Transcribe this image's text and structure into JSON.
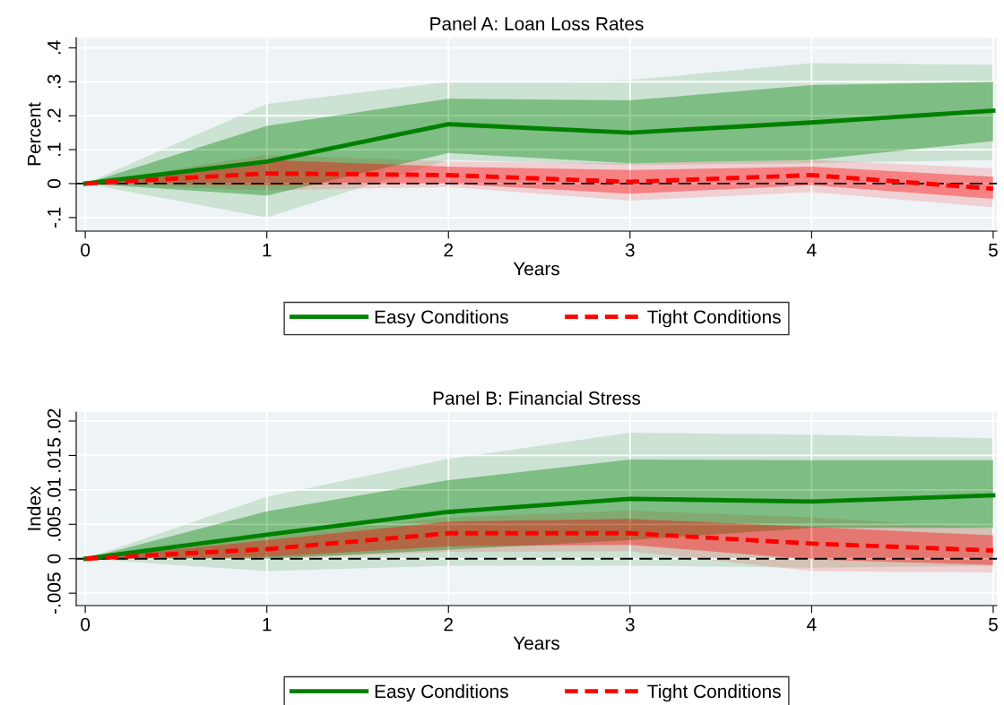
{
  "chart_data": [
    {
      "type": "line",
      "title": "Panel A: Loan Loss Rates",
      "xlabel": "Years",
      "ylabel": "Percent",
      "x": [
        0,
        1,
        2,
        3,
        4,
        5
      ],
      "xlim": [
        -0.05,
        5.02
      ],
      "xticks": [
        0,
        1,
        2,
        3,
        4,
        5
      ],
      "ylim": [
        -0.14,
        0.43
      ],
      "yticks": [
        {
          "value": -0.1,
          "label": "-.1"
        },
        0,
        {
          "value": 0.1,
          "label": ".1"
        },
        {
          "value": 0.2,
          "label": ".2"
        },
        {
          "value": 0.3,
          "label": ".3"
        },
        {
          "value": 0.4,
          "label": ".4"
        }
      ],
      "grid": true,
      "legend": "bottom",
      "ref_lines": [
        {
          "axis": "y",
          "value": 0,
          "color": "#000000",
          "line_style": "dashed"
        }
      ],
      "series": [
        {
          "name": "Easy Conditions",
          "color": "#008000",
          "line_style": "solid",
          "values": [
            0,
            0.065,
            0.175,
            0.15,
            0.18,
            0.215
          ],
          "lower": [
            0,
            -0.035,
            0.09,
            0.06,
            0.07,
            0.125
          ],
          "upper": [
            0,
            0.17,
            0.25,
            0.245,
            0.29,
            0.3
          ]
        },
        {
          "name": "Tight Conditions",
          "color": "#ff0000",
          "line_style": "dashed",
          "values": [
            0,
            0.03,
            0.025,
            0.005,
            0.025,
            -0.015
          ],
          "lower": [
            0,
            -0.005,
            0.0,
            -0.03,
            -0.005,
            -0.045
          ],
          "upper": [
            0,
            0.07,
            0.05,
            0.04,
            0.05,
            0.02
          ]
        },
        {
          "color": "#008000",
          "values": [
            null,
            null,
            null,
            null,
            null,
            null
          ],
          "lower": [
            0,
            -0.1,
            0.07,
            0.055,
            0.06,
            0.07
          ],
          "upper": [
            0,
            0.235,
            0.3,
            0.305,
            0.355,
            0.35
          ]
        },
        {
          "color": "#ff0000",
          "values": [
            null,
            null,
            null,
            null,
            null,
            null
          ],
          "lower": [
            0,
            -0.02,
            -0.01,
            -0.05,
            -0.025,
            -0.07
          ],
          "upper": [
            0,
            0.085,
            0.065,
            0.06,
            0.07,
            0.045
          ]
        }
      ]
    },
    {
      "type": "line",
      "title": "Panel B: Financial Stress",
      "xlabel": "Years",
      "ylabel": "Index",
      "x": [
        0,
        1,
        2,
        3,
        4,
        5
      ],
      "xlim": [
        -0.05,
        5.02
      ],
      "xticks": [
        0,
        1,
        2,
        3,
        4,
        5
      ],
      "ylim": [
        -0.0068,
        0.0213
      ],
      "yticks": [
        {
          "value": -0.005,
          "label": "-.005"
        },
        0,
        {
          "value": 0.005,
          "label": ".005"
        },
        {
          "value": 0.01,
          "label": ".01"
        },
        {
          "value": 0.015,
          "label": ".015"
        },
        {
          "value": 0.02,
          "label": ".02"
        }
      ],
      "grid": true,
      "legend": "bottom",
      "ref_lines": [
        {
          "axis": "y",
          "value": 0,
          "color": "#000000",
          "line_style": "dashed"
        }
      ],
      "series": [
        {
          "name": "Easy Conditions",
          "color": "#008000",
          "line_style": "solid",
          "values": [
            0,
            0.0035,
            0.0068,
            0.0087,
            0.0083,
            0.0092
          ],
          "lower": [
            0,
            0,
            0.0013,
            0.0027,
            0.0045,
            0.0045
          ],
          "upper": [
            0,
            0.0069,
            0.0114,
            0.0144,
            0.0143,
            0.0143
          ]
        },
        {
          "name": "Tight Conditions",
          "color": "#ff0000",
          "line_style": "dashed",
          "values": [
            0,
            0.0014,
            0.0037,
            0.0037,
            0.0022,
            0.0012
          ],
          "lower": [
            0,
            0.0003,
            0.0018,
            0.002,
            -0.0001,
            -0.0009
          ],
          "upper": [
            0,
            0.0027,
            0.0054,
            0.0058,
            0.0046,
            0.0034
          ]
        },
        {
          "color": "#008000",
          "values": [
            null,
            null,
            null,
            null,
            null,
            null
          ],
          "lower": [
            0,
            -0.0018,
            -0.001,
            -0.001,
            -0.0013,
            -0.001
          ],
          "upper": [
            0,
            0.009,
            0.0145,
            0.0183,
            0.018,
            0.0175
          ]
        },
        {
          "color": "#ff0000",
          "values": [
            null,
            null,
            null,
            null,
            null,
            null
          ],
          "lower": [
            0,
            0,
            0.001,
            0.0011,
            -0.0018,
            -0.002
          ],
          "upper": [
            0,
            0.0032,
            0.006,
            0.007,
            0.006,
            0.0044
          ]
        }
      ]
    }
  ]
}
